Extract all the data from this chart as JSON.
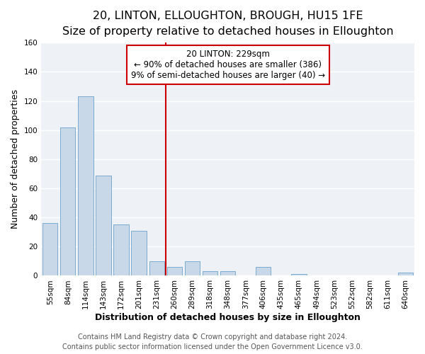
{
  "title": "20, LINTON, ELLOUGHTON, BROUGH, HU15 1FE",
  "subtitle": "Size of property relative to detached houses in Elloughton",
  "xlabel": "Distribution of detached houses by size in Elloughton",
  "ylabel": "Number of detached properties",
  "bar_labels": [
    "55sqm",
    "84sqm",
    "114sqm",
    "143sqm",
    "172sqm",
    "201sqm",
    "231sqm",
    "260sqm",
    "289sqm",
    "318sqm",
    "348sqm",
    "377sqm",
    "406sqm",
    "435sqm",
    "465sqm",
    "494sqm",
    "523sqm",
    "552sqm",
    "582sqm",
    "611sqm",
    "640sqm"
  ],
  "bar_values": [
    36,
    102,
    123,
    69,
    35,
    31,
    10,
    6,
    10,
    3,
    3,
    0,
    6,
    0,
    1,
    0,
    0,
    0,
    0,
    0,
    2
  ],
  "bar_color": "#c8d8e8",
  "bar_edge_color": "#7aabcf",
  "vline_color": "#cc0000",
  "vline_index": 6,
  "annotation_line1": "20 LINTON: 229sqm",
  "annotation_line2": "← 90% of detached houses are smaller (386)",
  "annotation_line3": "9% of semi-detached houses are larger (40) →",
  "annotation_box_color": "#ffffff",
  "annotation_box_edge": "#cc0000",
  "ylim": [
    0,
    160
  ],
  "yticks": [
    0,
    20,
    40,
    60,
    80,
    100,
    120,
    140,
    160
  ],
  "footer_line1": "Contains HM Land Registry data © Crown copyright and database right 2024.",
  "footer_line2": "Contains public sector information licensed under the Open Government Licence v3.0.",
  "plot_bg_color": "#eef2f7",
  "fig_bg_color": "#ffffff",
  "grid_color": "#ffffff",
  "title_fontsize": 11.5,
  "subtitle_fontsize": 9.5,
  "axis_label_fontsize": 9,
  "tick_fontsize": 7.5,
  "annotation_fontsize": 8.5,
  "footer_fontsize": 7
}
